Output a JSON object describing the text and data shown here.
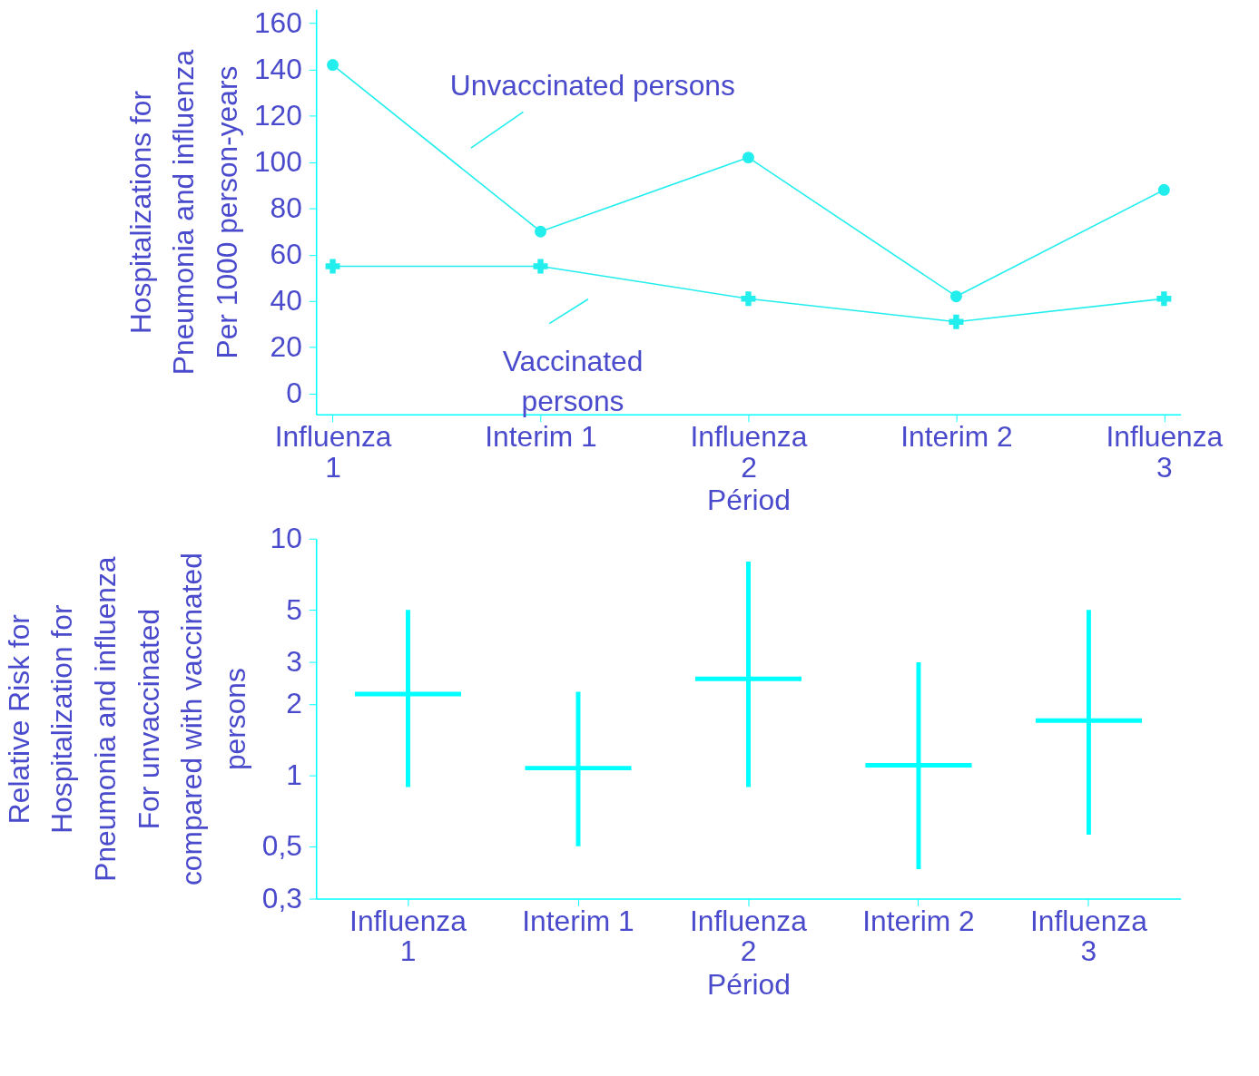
{
  "chart_data": [
    {
      "type": "line",
      "xlabel": "Périod",
      "ylabel": "Hospitalizations for\nPneumonia and influenza\nPer 1000 person-years",
      "categories": [
        "Influenza 1",
        "Interim 1",
        "Influenza 2",
        "Interim 2",
        "Influenza 3"
      ],
      "series": [
        {
          "name": "Unvaccinated persons",
          "color": "#22eeee",
          "marker": "circle",
          "values": [
            142,
            70,
            102,
            42,
            88
          ]
        },
        {
          "name": "Vaccinated persons",
          "color": "#22eeee",
          "marker": "cross",
          "values": [
            55,
            55,
            41,
            31,
            41
          ]
        }
      ],
      "ylim": [
        -9,
        166
      ],
      "yticks": [
        0,
        20,
        40,
        60,
        80,
        100,
        120,
        140,
        160
      ],
      "grid": false
    },
    {
      "type": "box",
      "xlabel": "Périod",
      "ylabel": "Relative Risk for\nHospitalization for\nPneumonia and influenza\nFor unvaccinated\ncompared with vaccinated\npersons",
      "categories": [
        "Influenza 1",
        "Interim 1",
        "Influenza 2",
        "Interim 2",
        "Influenza 3"
      ],
      "series": [
        {
          "color": "#00ffff",
          "boxes": [
            {
              "low": 0.89,
              "q1": 2.2,
              "median": 2.2,
              "q3": 2.2,
              "high": 5.0
            },
            {
              "low": 0.5,
              "q1": 1.07,
              "median": 1.07,
              "q3": 1.07,
              "high": 2.25
            },
            {
              "low": 0.89,
              "q1": 2.55,
              "median": 2.55,
              "q3": 2.55,
              "high": 8.0
            },
            {
              "low": 0.4,
              "q1": 1.1,
              "median": 1.1,
              "q3": 1.1,
              "high": 3.0
            },
            {
              "low": 0.56,
              "q1": 1.7,
              "median": 1.7,
              "q3": 1.7,
              "high": 5.0
            }
          ]
        }
      ],
      "log": "y",
      "ylim": [
        0.3,
        10
      ],
      "yticks": [
        {
          "value": 0.3,
          "label": "0,3"
        },
        {
          "value": 0.5,
          "label": "0,5"
        },
        1,
        2,
        3,
        5,
        10
      ],
      "grid": false
    }
  ]
}
